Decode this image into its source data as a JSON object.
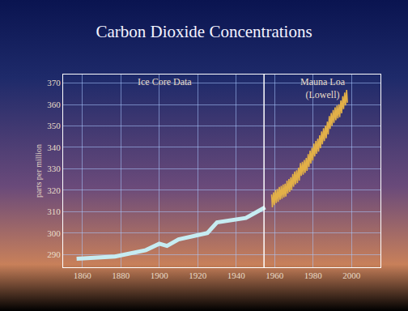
{
  "chart_data": {
    "type": "line",
    "title": "Carbon Dioxide Concentrations",
    "y_label": "parts per million",
    "xlim": [
      1850,
      2015
    ],
    "ylim": [
      284,
      374
    ],
    "xticks": [
      1860,
      1880,
      1900,
      1920,
      1940,
      1960,
      1980,
      2000
    ],
    "yticks": [
      290,
      300,
      310,
      320,
      330,
      340,
      350,
      360,
      370
    ],
    "grid": true,
    "series": [
      {
        "name": "Ice Core Data",
        "color": "#c6ecf2",
        "x": [
          1857,
          1877,
          1893,
          1900,
          1904,
          1910,
          1925,
          1930,
          1945,
          1955
        ],
        "values": [
          288,
          289,
          292,
          295,
          294,
          297,
          300,
          305,
          307,
          312
        ]
      },
      {
        "name": "Mauna Loa (Lowell)",
        "color": "#e2b048",
        "x": [
          1958.4,
          1958.8,
          1959.4,
          1959.8,
          1960.4,
          1960.8,
          1961.4,
          1961.8,
          1962.4,
          1962.8,
          1963.4,
          1963.8,
          1964.4,
          1964.8,
          1965.4,
          1965.8,
          1966.4,
          1966.8,
          1967.4,
          1967.8,
          1968.4,
          1968.8,
          1969.4,
          1969.8,
          1970.4,
          1970.8,
          1971.4,
          1971.8,
          1972.4,
          1972.8,
          1973.4,
          1973.8,
          1974.4,
          1974.8,
          1975.4,
          1975.8,
          1976.4,
          1976.8,
          1977.4,
          1977.8,
          1978.4,
          1978.8,
          1979.4,
          1979.8,
          1980.4,
          1980.8,
          1981.4,
          1981.8,
          1982.4,
          1982.8,
          1983.4,
          1983.8,
          1984.4,
          1984.8,
          1985.4,
          1985.8,
          1986.4,
          1986.8,
          1987.4,
          1987.8,
          1988.4,
          1988.8,
          1989.4,
          1989.8,
          1990.4,
          1990.8,
          1991.4,
          1991.8,
          1992.4,
          1992.8,
          1993.4,
          1993.8,
          1994.4,
          1994.8,
          1995.4,
          1995.8,
          1996.4,
          1996.8,
          1997.4,
          1997.8
        ],
        "values": [
          318,
          312,
          319,
          313,
          320,
          314,
          320.6,
          314.6,
          321.5,
          315.5,
          322,
          316,
          322.6,
          316.6,
          323,
          317,
          324.4,
          318.4,
          325.2,
          319.2,
          326,
          320,
          327.6,
          321.6,
          328.7,
          322.7,
          329.3,
          323.3,
          330.5,
          324.5,
          332.7,
          326.7,
          333.2,
          327.2,
          334.1,
          328.1,
          335,
          329,
          336.8,
          330.8,
          338.4,
          332.4,
          339.8,
          333.8,
          341.7,
          335.7,
          343,
          337,
          344,
          338,
          345.6,
          339.6,
          347.4,
          341.4,
          348.9,
          342.9,
          350.2,
          344.2,
          352,
          346,
          354.6,
          348.6,
          356,
          350,
          357.4,
          351.4,
          358.7,
          352.7,
          359.5,
          353.5,
          360.1,
          354.1,
          361.9,
          355.9,
          363.9,
          357.9,
          365.6,
          359.6,
          366.8,
          360.8
        ]
      }
    ]
  }
}
